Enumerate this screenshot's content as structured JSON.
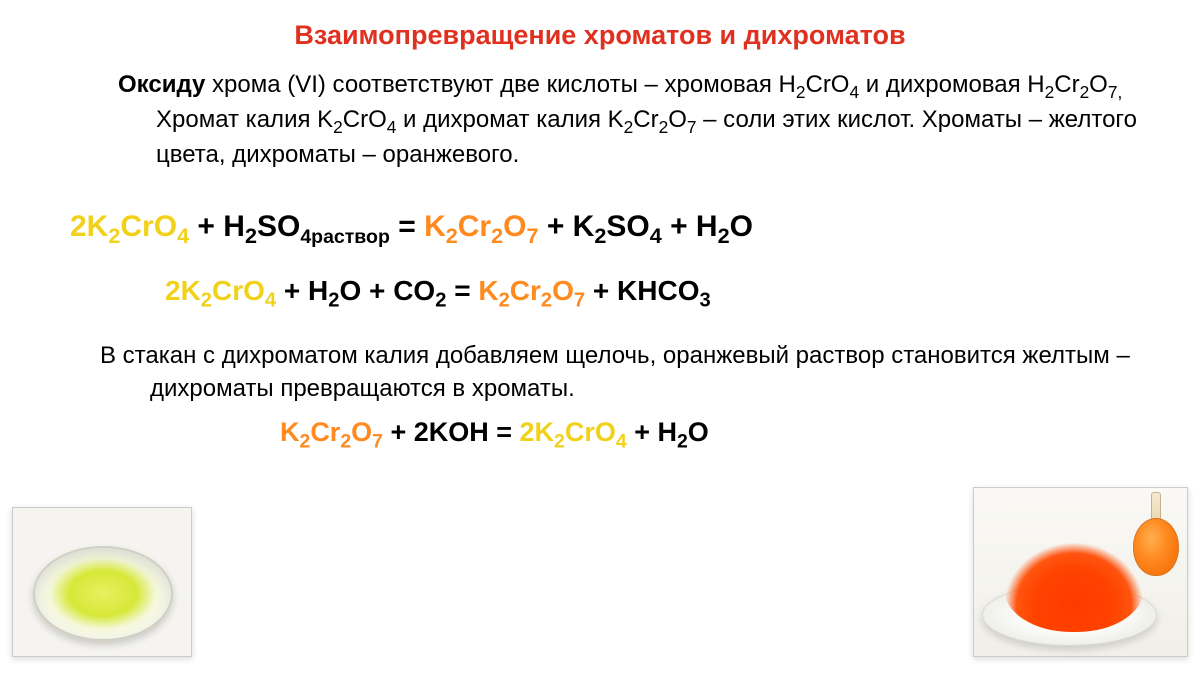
{
  "colors": {
    "title_red": "#e03020",
    "chromate_yellow": "#f2d11a",
    "dichromate_orange": "#ff8a20",
    "text_black": "#000000"
  },
  "font": {
    "title_size": 27,
    "body_size": 24,
    "eq_size": 30,
    "eq2_size": 28,
    "eq3_size": 27
  },
  "title": "Взаимопревращение хроматов и дихроматов",
  "intro": {
    "p1": "Оксиду",
    "p2": " хрома (VI) соответствуют  две кислоты – хромовая H",
    "p2s": "2",
    "p3": "CrO",
    "p3s": "4",
    "p4": " и дихромовая   H",
    "p4s": "2",
    "p5": "Cr",
    "p5s": "2",
    "p6": "O",
    "p6s": "7, ",
    "p7": "Хромат калия K",
    "p7s": "2",
    "p8": "CrO",
    "p8s": "4",
    "p9": " и дихромат калия K",
    "p9s": "2",
    "p10": "Cr",
    "p10s": "2",
    "p11": "O",
    "p11s": "7",
    "p12": " – соли этих кислот. Хроматы – желтого цвета, дихроматы – оранжевого."
  },
  "eq1": {
    "a1": "2K",
    "a1s": "2",
    "a2": "CrO",
    "a2s": "4",
    "b": " + H",
    "bs": "2",
    "b2": "SO",
    "b2s": "4раствор",
    "b3": " = ",
    "c1": "K",
    "c1s": "2",
    "c2": "Cr",
    "c2s": "2",
    "c3": "O",
    "c3s": "7",
    "d": " + K",
    "ds": "2",
    "d2": "SO",
    "d2s": "4",
    "d3": " + H",
    "d3s": "2",
    "d4": "O"
  },
  "eq2": {
    "a1": "2K",
    "a1s": "2",
    "a2": "CrO",
    "a2s": "4",
    "b": " + H",
    "bs": "2",
    "b2": "O  + CO",
    "b2s": "2",
    "b3": " =  ",
    "c1": "K",
    "c1s": "2",
    "c2": "Cr",
    "c2s": "2",
    "c3": "O",
    "c3s": "7",
    "d": " + KHCO",
    "ds": "3"
  },
  "mid": "В стакан с дихроматом калия добавляем щелочь, оранжевый раствор становится желтым – дихроматы превращаются в хроматы.",
  "eq3": {
    "c1": "K",
    "c1s": "2",
    "c2": "Cr",
    "c2s": "2",
    "c3": "O",
    "c3s": "7",
    "b": " + 2KOH = ",
    "a1": "2K",
    "a1s": "2",
    "a2": "CrO",
    "a2s": "4",
    "d": " + H",
    "ds": "2",
    "d2": "O"
  }
}
